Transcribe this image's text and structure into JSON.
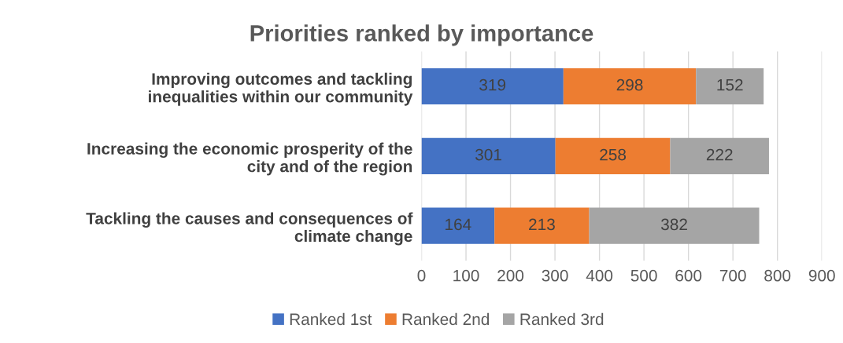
{
  "chart_data": {
    "type": "bar",
    "title": "Priorities ranked by importance",
    "orientation": "horizontal",
    "stacked": true,
    "categories": [
      "Improving outcomes and tackling\ninequalities within our community",
      "Increasing the economic prosperity of the\ncity and of the region",
      "Tackling the causes and consequences of\nclimate change"
    ],
    "series": [
      {
        "name": "Ranked 1st",
        "color": "#4472c4",
        "values": [
          319,
          301,
          164
        ]
      },
      {
        "name": "Ranked 2nd",
        "color": "#ed7d31",
        "values": [
          298,
          258,
          213
        ]
      },
      {
        "name": "Ranked 3rd",
        "color": "#a5a5a5",
        "values": [
          152,
          222,
          382
        ]
      }
    ],
    "xlim": [
      0,
      900
    ],
    "xticks": [
      0,
      100,
      200,
      300,
      400,
      500,
      600,
      700,
      800,
      900
    ],
    "grid": "x",
    "legend": "bottom",
    "data_labels": true
  }
}
